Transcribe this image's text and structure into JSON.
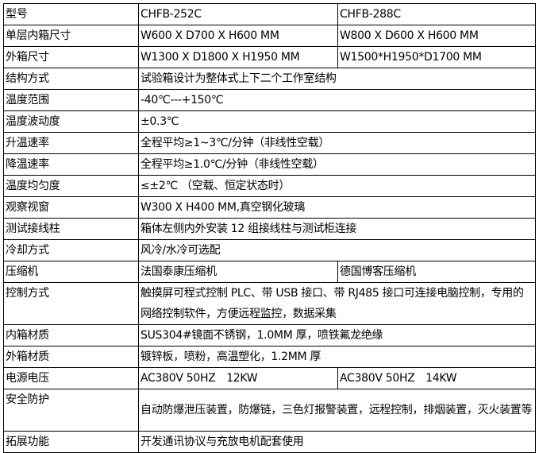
{
  "rows": [
    {
      "label": "型号",
      "values": [
        "CHFB-252C",
        "CHFB-288C"
      ]
    },
    {
      "label": "单层内箱尺寸",
      "values": [
        "W600 X D700 X H600 MM",
        "W800 X D600 X H600 MM"
      ]
    },
    {
      "label": "外箱尺寸",
      "values": [
        "W1300 X D1800 X H1950 MM",
        "W1500*H1950*D1700 MM"
      ]
    },
    {
      "label": "结构方式",
      "value": "试验箱设计为整体式上下二个工作室结构"
    },
    {
      "label": "温度范围",
      "value": "-40℃---+150℃"
    },
    {
      "label": "温度波动度",
      "value": "±0.3℃"
    },
    {
      "label": "升温速率",
      "value": "全程平均≥1~3℃/分钟（非线性空载）"
    },
    {
      "label": "降温速率",
      "value": "全程平均≥1.0℃/分钟（非线性空载）"
    },
    {
      "label": "温度均匀度",
      "value": "≤±2℃ （空载、恒定状态时）"
    },
    {
      "label": "观察视窗",
      "value": "W300 X H400 MM,真空钢化玻璃"
    },
    {
      "label": "测试接线柱",
      "value": "箱体左侧内外安装 12 组接线柱与测试柜连接"
    },
    {
      "label": "冷却方式",
      "value": "风冷/水冷可选配"
    },
    {
      "label": "压缩机",
      "values": [
        "法国泰康压缩机",
        "德国博客压缩机"
      ]
    },
    {
      "label": "控制方式",
      "value": "触摸屏可程式控制 PLC、带 USB 接口、带 RJ485 接口可连接电脑控制，专用的网络控制软件，方便远程监控，数据采集"
    },
    {
      "label": "内箱材质",
      "value": "SUS304#镜面不锈钢，1.0MM 厚，喷铁氟龙绝缘"
    },
    {
      "label": "外箱材质",
      "value": "镀锌板，喷粉，高温塑化，1.2MM 厚"
    },
    {
      "label": "电源电压",
      "values": [
        "AC380V 50HZ　12KW",
        "AC380V 50HZ　14KW"
      ]
    },
    {
      "label": "安全防护",
      "value": "自动防爆泄压装置，防爆链，三色灯报警装置，远程控制，排烟装置，灭火装置等"
    },
    {
      "label": "拓展功能",
      "value": "开发通讯协议与充放电机配套使用"
    }
  ]
}
